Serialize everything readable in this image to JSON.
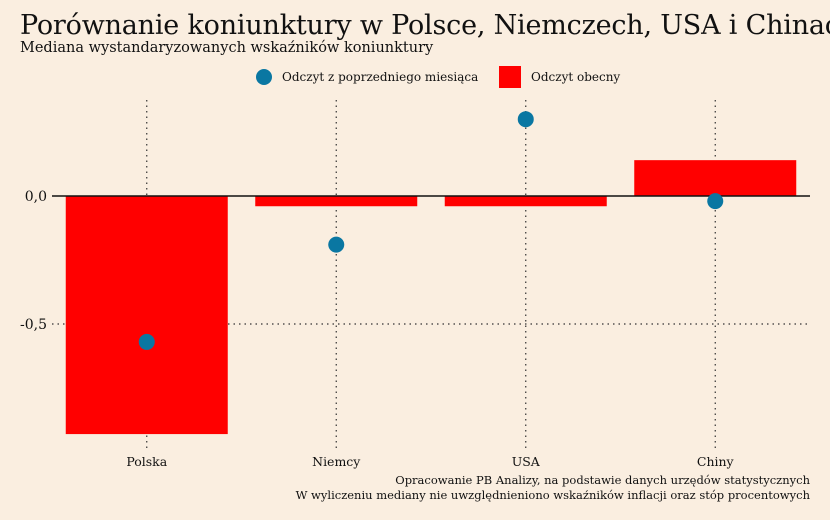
{
  "colors": {
    "background": "#faeee0",
    "bar": "#ff0000",
    "dot": "#0a77a2",
    "zero_line": "#111111",
    "grid": "#333333"
  },
  "chart_data": {
    "type": "bar",
    "title": "Porównanie koniunktury w Polsce, Niemczech, USA i Chinach",
    "subtitle": "Mediana wystandaryzowanych wskaźników koniunktury",
    "categories": [
      "Polska",
      "Niemcy",
      "USA",
      "Chiny"
    ],
    "series": [
      {
        "name": "Odczyt obecny",
        "kind": "bar",
        "values": [
          -0.93,
          -0.04,
          -0.04,
          0.14
        ]
      },
      {
        "name": "Odczyt z poprzedniego miesiąca",
        "kind": "point",
        "values": [
          -0.57,
          -0.19,
          0.3,
          -0.02
        ]
      }
    ],
    "yticks": [
      0.0,
      -0.5
    ],
    "ytick_labels": [
      "0,0",
      "-0,5"
    ],
    "ylim": [
      -0.98,
      0.36
    ],
    "grid": {
      "x": "dotted",
      "y": "dotted"
    },
    "legend_position": "top-center",
    "xlabel": "",
    "ylabel": ""
  },
  "footer": {
    "line1": "Opracowanie PB Analizy, na podstawie danych urzędów statystycznych",
    "line2": "W wyliczeniu mediany nie uwzględnieniono wskaźników inflacji oraz stóp procentowych"
  }
}
